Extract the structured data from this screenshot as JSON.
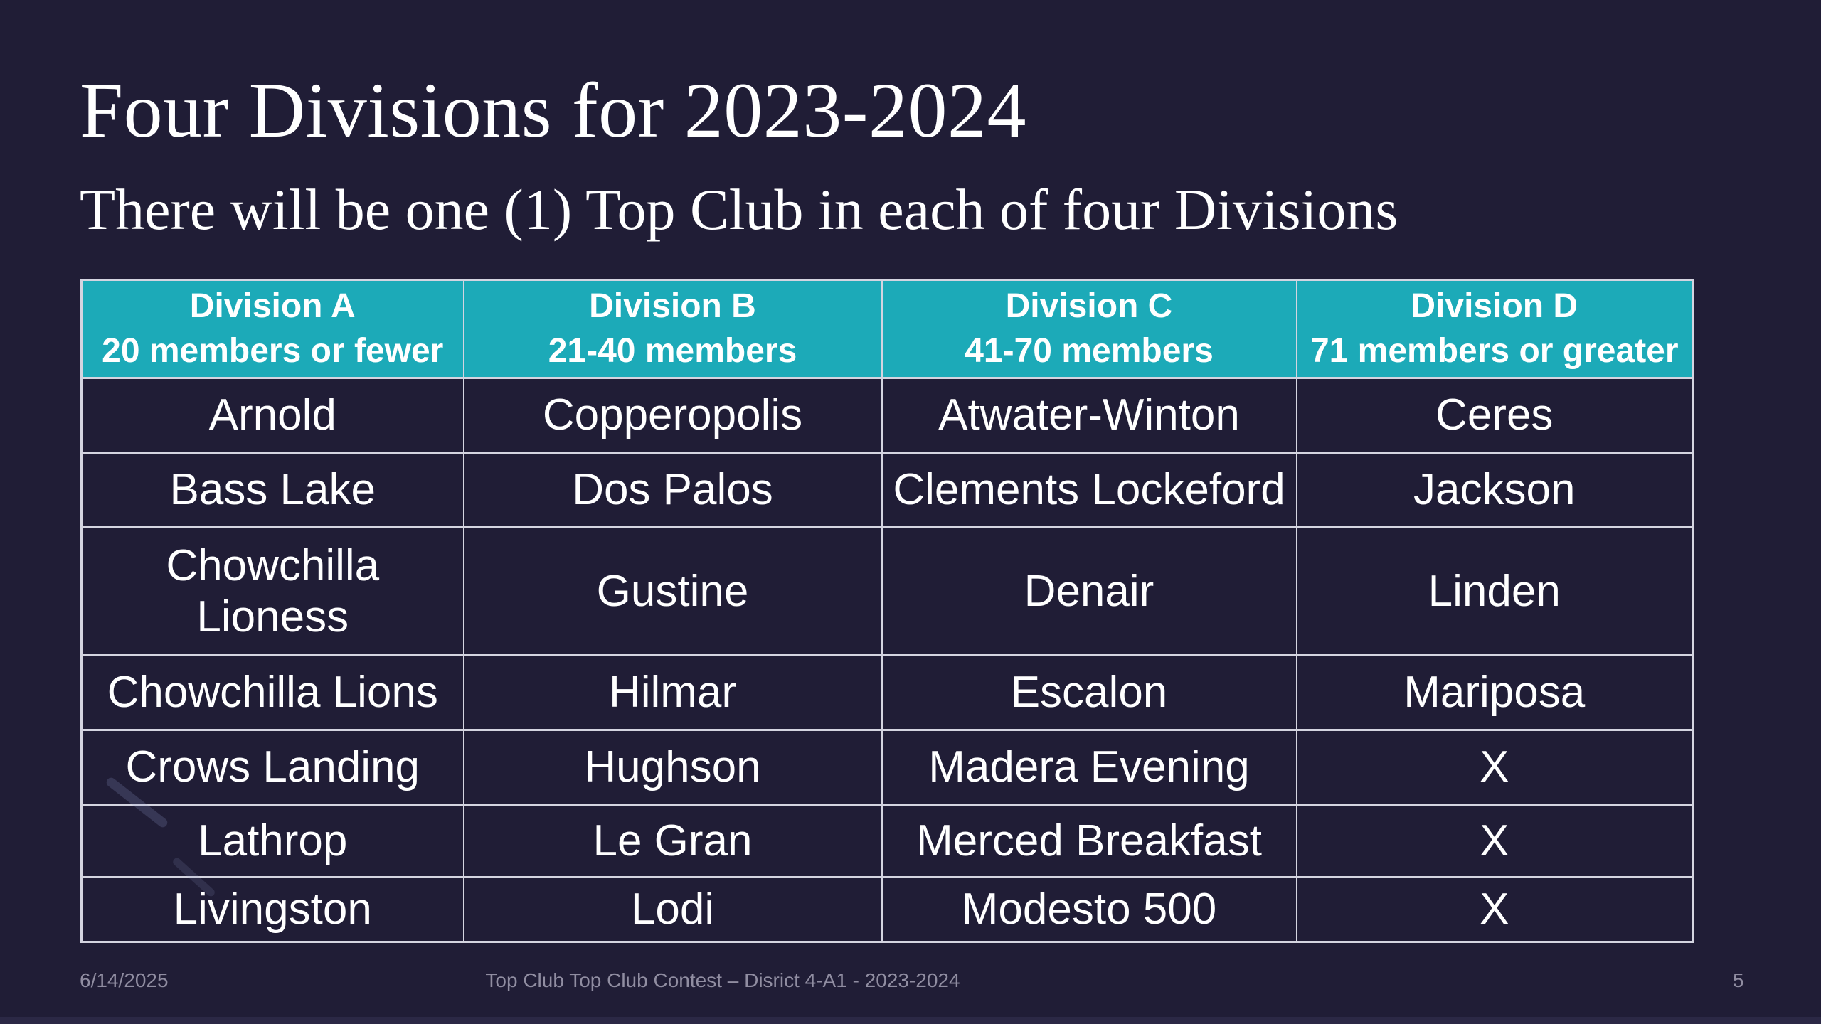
{
  "slide": {
    "title": "Four Divisions for 2023-2024",
    "subtitle": "There will be one (1) Top Club in each of four Divisions",
    "footer": {
      "date": "6/14/2025",
      "center": "Top Club Top Club Contest – Disrict 4-A1 - 2023-2024",
      "page": "5"
    }
  },
  "table": {
    "columns": [
      {
        "name": "Division A",
        "range": "20 members or fewer"
      },
      {
        "name": "Division B",
        "range": "21-40 members"
      },
      {
        "name": "Division C",
        "range": "41-70 members"
      },
      {
        "name": "Division D",
        "range": "71 members or greater"
      }
    ],
    "rows": [
      [
        "Arnold",
        "Copperopolis",
        "Atwater-Winton",
        "Ceres"
      ],
      [
        "Bass Lake",
        "Dos Palos",
        "Clements Lockeford",
        "Jackson"
      ],
      [
        "Chowchilla Lioness",
        "Gustine",
        "Denair",
        "Linden"
      ],
      [
        "Chowchilla Lions",
        "Hilmar",
        "Escalon",
        "Mariposa"
      ],
      [
        "Crows Landing",
        "Hughson",
        "Madera Evening",
        "X"
      ],
      [
        "Lathrop",
        "Le Gran",
        "Merced Breakfast",
        "X"
      ],
      [
        "Livingston",
        "Lodi",
        "Modesto 500",
        "X"
      ]
    ]
  },
  "colors": {
    "background": "#201d36",
    "header_bg": "#1caab8",
    "header_text": "#ffffff",
    "body_text": "#ffffff",
    "title_text": "#ffffff",
    "border": "#d4d4e0",
    "footer_text": "#908da1",
    "strip": "#2b2845"
  }
}
